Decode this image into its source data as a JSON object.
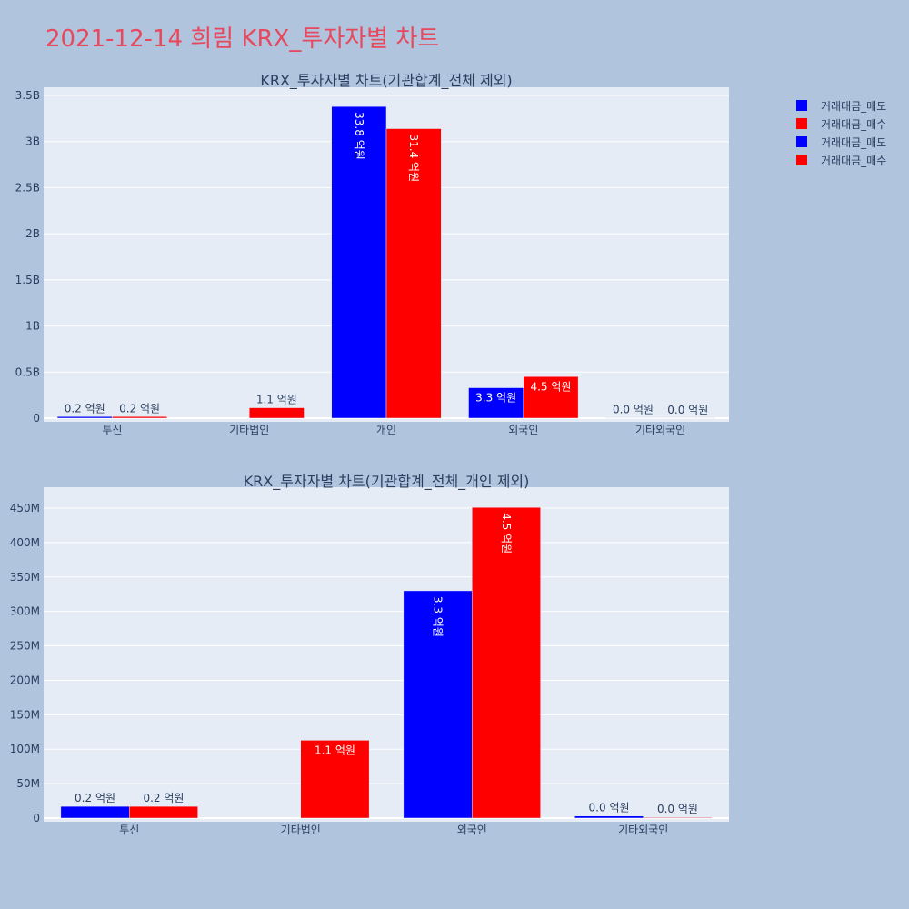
{
  "page": {
    "title": "2021-12-14 희림 KRX_투자자별 차트"
  },
  "colors": {
    "sell": "#0000ff",
    "buy": "#ff0000",
    "plot_bg": "#e5ecf6",
    "page_bg": "#b0c4de",
    "text": "#2a3f5f"
  },
  "legend": {
    "items": [
      {
        "label": "거래대금_매도",
        "color": "#0000ff"
      },
      {
        "label": "거래대금_매수",
        "color": "#ff0000"
      },
      {
        "label": "거래대금_매도",
        "color": "#0000ff"
      },
      {
        "label": "거래대금_매수",
        "color": "#ff0000"
      }
    ]
  },
  "chart_data": [
    {
      "type": "bar",
      "title": "KRX_투자자별 차트(기관합계_전체 제외)",
      "categories": [
        "투신",
        "기타법인",
        "개인",
        "외국인",
        "기타외국인"
      ],
      "ylim": [
        0,
        3500000000
      ],
      "yticks": [
        0,
        500000000,
        1000000000,
        1500000000,
        2000000000,
        2500000000,
        3000000000,
        3500000000
      ],
      "ytick_labels": [
        "0",
        "0.5B",
        "1B",
        "1.5B",
        "2B",
        "2.5B",
        "3B",
        "3.5B"
      ],
      "series": [
        {
          "name": "거래대금_매도",
          "color": "#0000ff",
          "values": [
            17000000,
            0,
            3380000000,
            330000000,
            3000000
          ],
          "labels": [
            "0.2 억원",
            "",
            "33.8 억원",
            "3.3 억원",
            "0.0 억원"
          ]
        },
        {
          "name": "거래대금_매수",
          "color": "#ff0000",
          "values": [
            17000000,
            113000000,
            3140000000,
            451000000,
            1000000
          ],
          "labels": [
            "0.2 억원",
            "1.1 억원",
            "31.4 억원",
            "4.5 억원",
            "0.0 억원"
          ]
        }
      ]
    },
    {
      "type": "bar",
      "title": "KRX_투자자별 차트(기관합계_전체_개인 제외)",
      "categories": [
        "투신",
        "기타법인",
        "외국인",
        "기타외국인"
      ],
      "ylim": [
        0,
        450000000
      ],
      "yticks": [
        0,
        50000000,
        100000000,
        150000000,
        200000000,
        250000000,
        300000000,
        350000000,
        400000000,
        450000000
      ],
      "ytick_labels": [
        "0",
        "50M",
        "100M",
        "150M",
        "200M",
        "250M",
        "300M",
        "350M",
        "400M",
        "450M"
      ],
      "series": [
        {
          "name": "거래대금_매도",
          "color": "#0000ff",
          "values": [
            17000000,
            0,
            330000000,
            3000000
          ],
          "labels": [
            "0.2 억원",
            "",
            "3.3 억원",
            "0.0 억원"
          ]
        },
        {
          "name": "거래대금_매수",
          "color": "#ff0000",
          "values": [
            17000000,
            113000000,
            451000000,
            1000000
          ],
          "labels": [
            "0.2 억원",
            "1.1 억원",
            "4.5 억원",
            "0.0 억원"
          ]
        }
      ]
    }
  ]
}
